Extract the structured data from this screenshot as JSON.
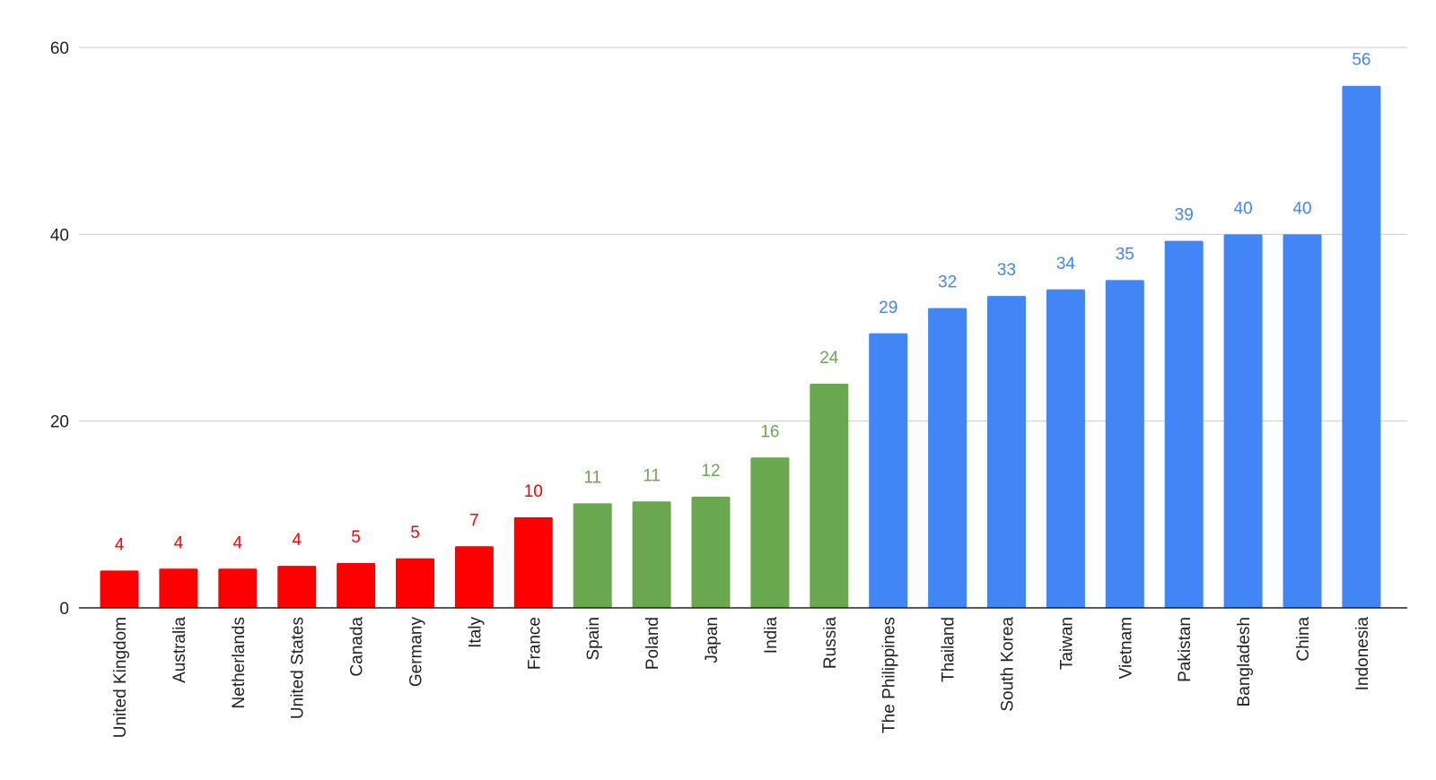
{
  "chart_data": {
    "type": "bar",
    "title": "",
    "xlabel": "",
    "ylabel": "",
    "ylim": [
      0,
      60
    ],
    "yticks": [
      0,
      20,
      40,
      60
    ],
    "grid": true,
    "legend": "none",
    "categories": [
      "United Kingdom",
      "Australia",
      "Netherlands",
      "United States",
      "Canada",
      "Germany",
      "Italy",
      "France",
      "Spain",
      "Poland",
      "Japan",
      "India",
      "Russia",
      "The Philippines",
      "Thailand",
      "South Korea",
      "Taiwan",
      "Vietnam",
      "Pakistan",
      "Bangladesh",
      "China",
      "Indonesia"
    ],
    "values": [
      4.0,
      4.2,
      4.2,
      4.5,
      4.8,
      5.3,
      6.6,
      9.7,
      11.2,
      11.4,
      11.9,
      16.1,
      24.0,
      29.4,
      32.1,
      33.4,
      34.1,
      35.1,
      39.3,
      40.0,
      40.0,
      55.9
    ],
    "data_labels": [
      "4",
      "4",
      "4",
      "4",
      "5",
      "5",
      "7",
      "10",
      "11",
      "11",
      "12",
      "16",
      "24",
      "29",
      "32",
      "33",
      "34",
      "35",
      "39",
      "40",
      "40",
      "56"
    ],
    "colors": [
      "#ff0000",
      "#ff0000",
      "#ff0000",
      "#ff0000",
      "#ff0000",
      "#ff0000",
      "#ff0000",
      "#ff0000",
      "#6aa84f",
      "#6aa84f",
      "#6aa84f",
      "#6aa84f",
      "#6aa84f",
      "#4285f4",
      "#4285f4",
      "#4285f4",
      "#4285f4",
      "#4285f4",
      "#4285f4",
      "#4285f4",
      "#4285f4",
      "#4285f4"
    ]
  }
}
